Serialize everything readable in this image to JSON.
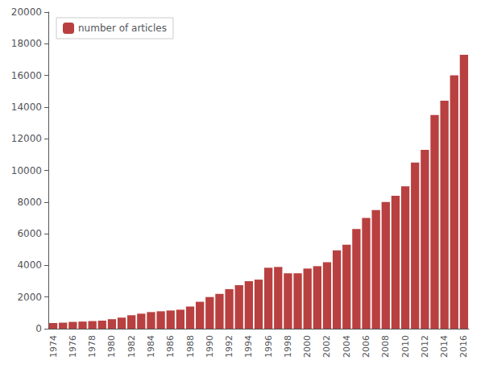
{
  "chart_data": {
    "type": "bar",
    "categories": [
      "1974",
      null,
      "1976",
      null,
      "1978",
      null,
      "1980",
      null,
      "1982",
      null,
      "1984",
      null,
      "1986",
      null,
      "1988",
      null,
      "1990",
      null,
      "1992",
      null,
      "1994",
      null,
      "1996",
      null,
      "1998",
      null,
      "2000",
      null,
      "2002",
      null,
      "2004",
      null,
      "2006",
      null,
      "2008",
      null,
      "2010",
      null,
      "2012",
      null,
      "2014",
      null,
      "2016"
    ],
    "series": [
      {
        "name": "number of articles",
        "color": "#b94040",
        "values": [
          350,
          380,
          430,
          450,
          480,
          510,
          600,
          700,
          850,
          950,
          1050,
          1100,
          1150,
          1200,
          1400,
          1700,
          2000,
          2200,
          2500,
          2750,
          3000,
          3100,
          3850,
          3900,
          3500,
          3500,
          3800,
          3950,
          4200,
          4950,
          5300,
          6300,
          7000,
          7500,
          8000,
          8400,
          9000,
          10500,
          11300,
          13500,
          14400,
          16000,
          17300
        ]
      }
    ],
    "ylim": [
      0,
      20000
    ],
    "yticks": [
      0,
      2000,
      4000,
      6000,
      8000,
      10000,
      12000,
      14000,
      16000,
      18000,
      20000
    ],
    "grid": false,
    "legend": "upper left"
  }
}
